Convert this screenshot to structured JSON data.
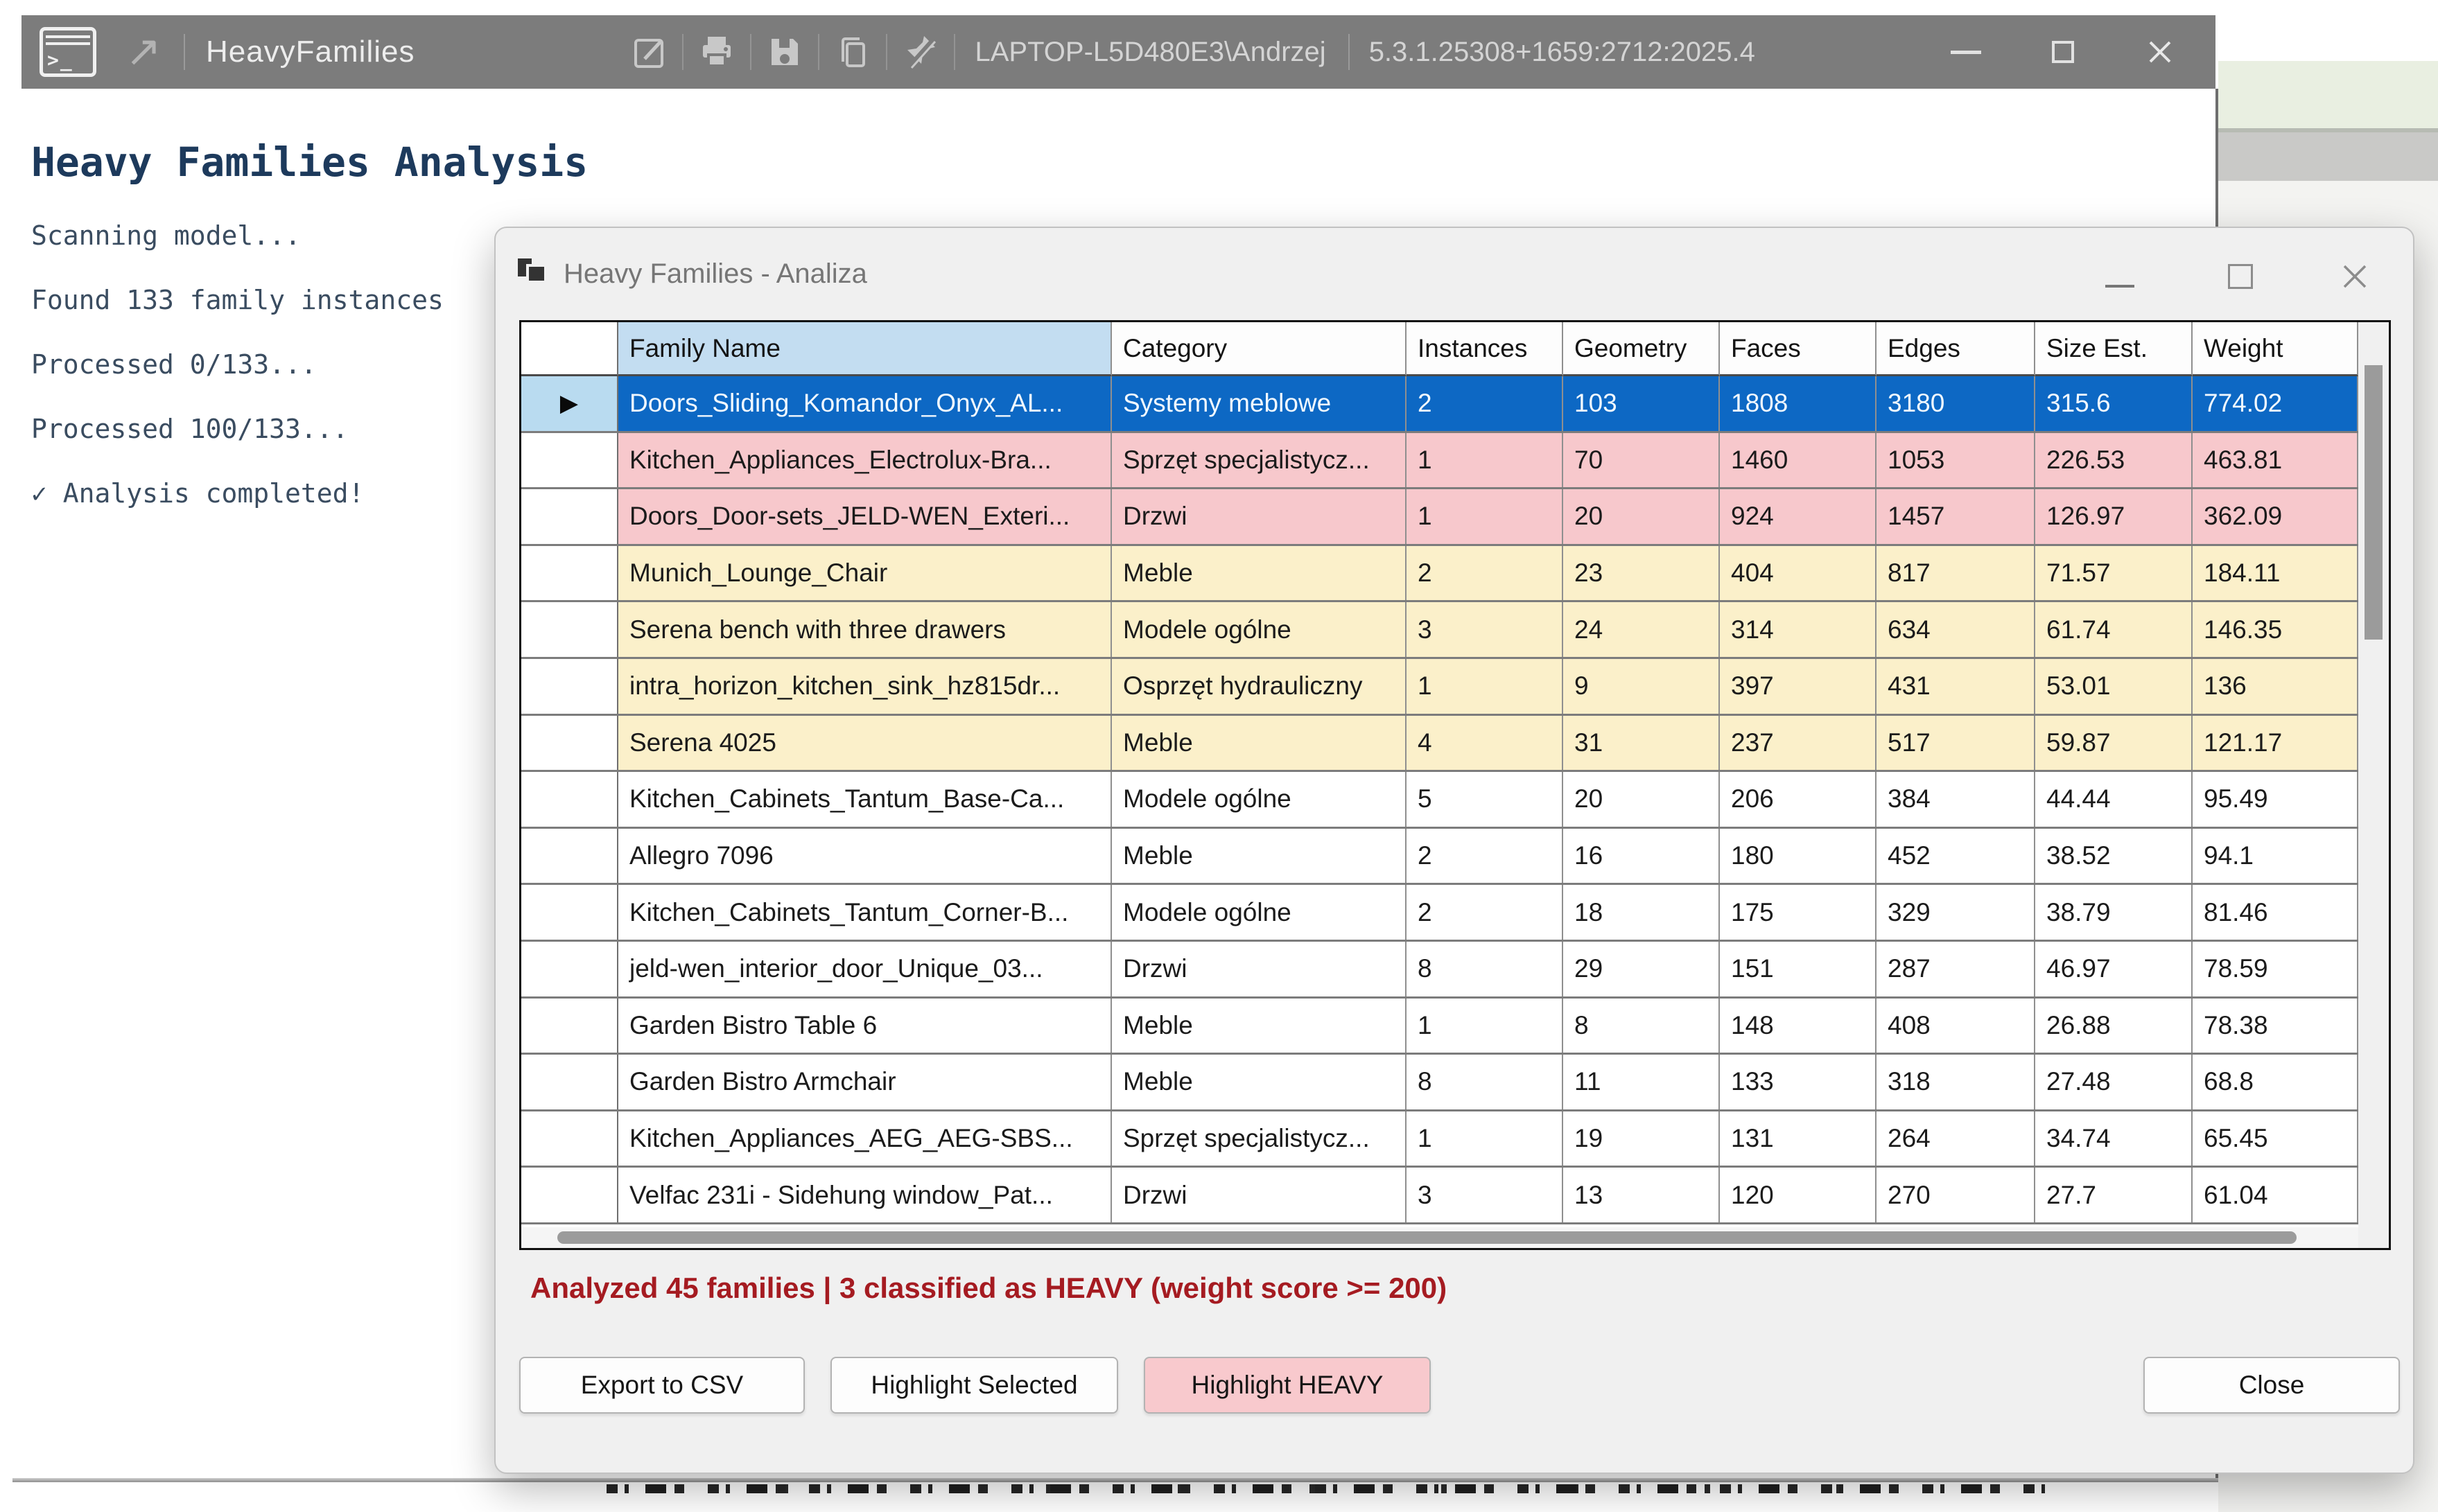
{
  "title_bar": {
    "app_title": "HeavyFamilies",
    "machine_user": "LAPTOP-L5D480E3\\Andrzej",
    "version": "5.3.1.25308+1659:2712:2025.4",
    "icons": [
      "terminal-icon",
      "open-external-arrow-icon",
      "launch-icon",
      "print-icon",
      "save-icon",
      "copy-icon",
      "unpin-icon",
      "minimize-icon",
      "maximize-icon",
      "close-icon"
    ]
  },
  "glyphs": {
    "prompt": ">_",
    "arrow": "↗",
    "selected_marker": "▶"
  },
  "console": {
    "heading": "Heavy Families Analysis",
    "log_lines": [
      "Scanning model...",
      "Found 133 family instances",
      "Processed 0/133...",
      "Processed 100/133...",
      "✓ Analysis completed!"
    ]
  },
  "dialog": {
    "title": "Heavy Families - Analiza",
    "window_icons": [
      "cascade-windows-icon",
      "minimize-icon",
      "maximize-icon",
      "close-icon"
    ],
    "table": {
      "columns": [
        "Family Name",
        "Category",
        "Instances",
        "Geometry",
        "Faces",
        "Edges",
        "Size Est.",
        "Weight"
      ],
      "highlighted_column": "Family Name",
      "rows": [
        {
          "state": "selected",
          "family": "Doors_Sliding_Komandor_Onyx_AL...",
          "category": "Systemy meblowe",
          "instances": "2",
          "geometry": "103",
          "faces": "1808",
          "edges": "3180",
          "size_est": "315.6",
          "weight": "774.02"
        },
        {
          "state": "heavy",
          "family": "Kitchen_Appliances_Electrolux-Bra...",
          "category": "Sprzęt specjalistycz...",
          "instances": "1",
          "geometry": "70",
          "faces": "1460",
          "edges": "1053",
          "size_est": "226.53",
          "weight": "463.81"
        },
        {
          "state": "heavy",
          "family": "Doors_Door-sets_JELD-WEN_Exteri...",
          "category": "Drzwi",
          "instances": "1",
          "geometry": "20",
          "faces": "924",
          "edges": "1457",
          "size_est": "126.97",
          "weight": "362.09"
        },
        {
          "state": "warning",
          "family": "Munich_Lounge_Chair",
          "category": "Meble",
          "instances": "2",
          "geometry": "23",
          "faces": "404",
          "edges": "817",
          "size_est": "71.57",
          "weight": "184.11"
        },
        {
          "state": "warning",
          "family": "Serena bench with three drawers",
          "category": "Modele ogólne",
          "instances": "3",
          "geometry": "24",
          "faces": "314",
          "edges": "634",
          "size_est": "61.74",
          "weight": "146.35"
        },
        {
          "state": "warning",
          "family": "intra_horizon_kitchen_sink_hz815dr...",
          "category": "Osprzęt hydrauliczny",
          "instances": "1",
          "geometry": "9",
          "faces": "397",
          "edges": "431",
          "size_est": "53.01",
          "weight": "136"
        },
        {
          "state": "warning",
          "family": "Serena 4025",
          "category": "Meble",
          "instances": "4",
          "geometry": "31",
          "faces": "237",
          "edges": "517",
          "size_est": "59.87",
          "weight": "121.17"
        },
        {
          "state": "normal",
          "family": "Kitchen_Cabinets_Tantum_Base-Ca...",
          "category": "Modele ogólne",
          "instances": "5",
          "geometry": "20",
          "faces": "206",
          "edges": "384",
          "size_est": "44.44",
          "weight": "95.49"
        },
        {
          "state": "normal",
          "family": "Allegro 7096",
          "category": "Meble",
          "instances": "2",
          "geometry": "16",
          "faces": "180",
          "edges": "452",
          "size_est": "38.52",
          "weight": "94.1"
        },
        {
          "state": "normal",
          "family": "Kitchen_Cabinets_Tantum_Corner-B...",
          "category": "Modele ogólne",
          "instances": "2",
          "geometry": "18",
          "faces": "175",
          "edges": "329",
          "size_est": "38.79",
          "weight": "81.46"
        },
        {
          "state": "normal",
          "family": "jeld-wen_interior_door_Unique_03...",
          "category": "Drzwi",
          "instances": "8",
          "geometry": "29",
          "faces": "151",
          "edges": "287",
          "size_est": "46.97",
          "weight": "78.59"
        },
        {
          "state": "normal",
          "family": "Garden Bistro Table 6",
          "category": "Meble",
          "instances": "1",
          "geometry": "8",
          "faces": "148",
          "edges": "408",
          "size_est": "26.88",
          "weight": "78.38"
        },
        {
          "state": "normal",
          "family": "Garden Bistro Armchair",
          "category": "Meble",
          "instances": "8",
          "geometry": "11",
          "faces": "133",
          "edges": "318",
          "size_est": "27.48",
          "weight": "68.8"
        },
        {
          "state": "normal",
          "family": "Kitchen_Appliances_AEG_AEG-SBS...",
          "category": "Sprzęt specjalistycz...",
          "instances": "1",
          "geometry": "19",
          "faces": "131",
          "edges": "264",
          "size_est": "34.74",
          "weight": "65.45"
        },
        {
          "state": "normal",
          "family": "Velfac 231i - Sidehung window_Pat...",
          "category": "Drzwi",
          "instances": "3",
          "geometry": "13",
          "faces": "120",
          "edges": "270",
          "size_est": "27.7",
          "weight": "61.04"
        }
      ]
    },
    "status": "Analyzed 45 families | 3 classified as HEAVY (weight score >= 200)",
    "buttons": {
      "export_csv": "Export to CSV",
      "highlight_selected": "Highlight Selected",
      "highlight_heavy": "Highlight HEAVY",
      "close": "Close"
    }
  },
  "colors": {
    "titlebar_bg": "#7c7c7c",
    "heading_text": "#1d3a5c",
    "selected_row": "#0d68c4",
    "heavy_row": "#f7c8cc",
    "warning_row": "#fbf0ca",
    "header_highlight": "#c3ddf1",
    "status_text": "#a51b21"
  }
}
